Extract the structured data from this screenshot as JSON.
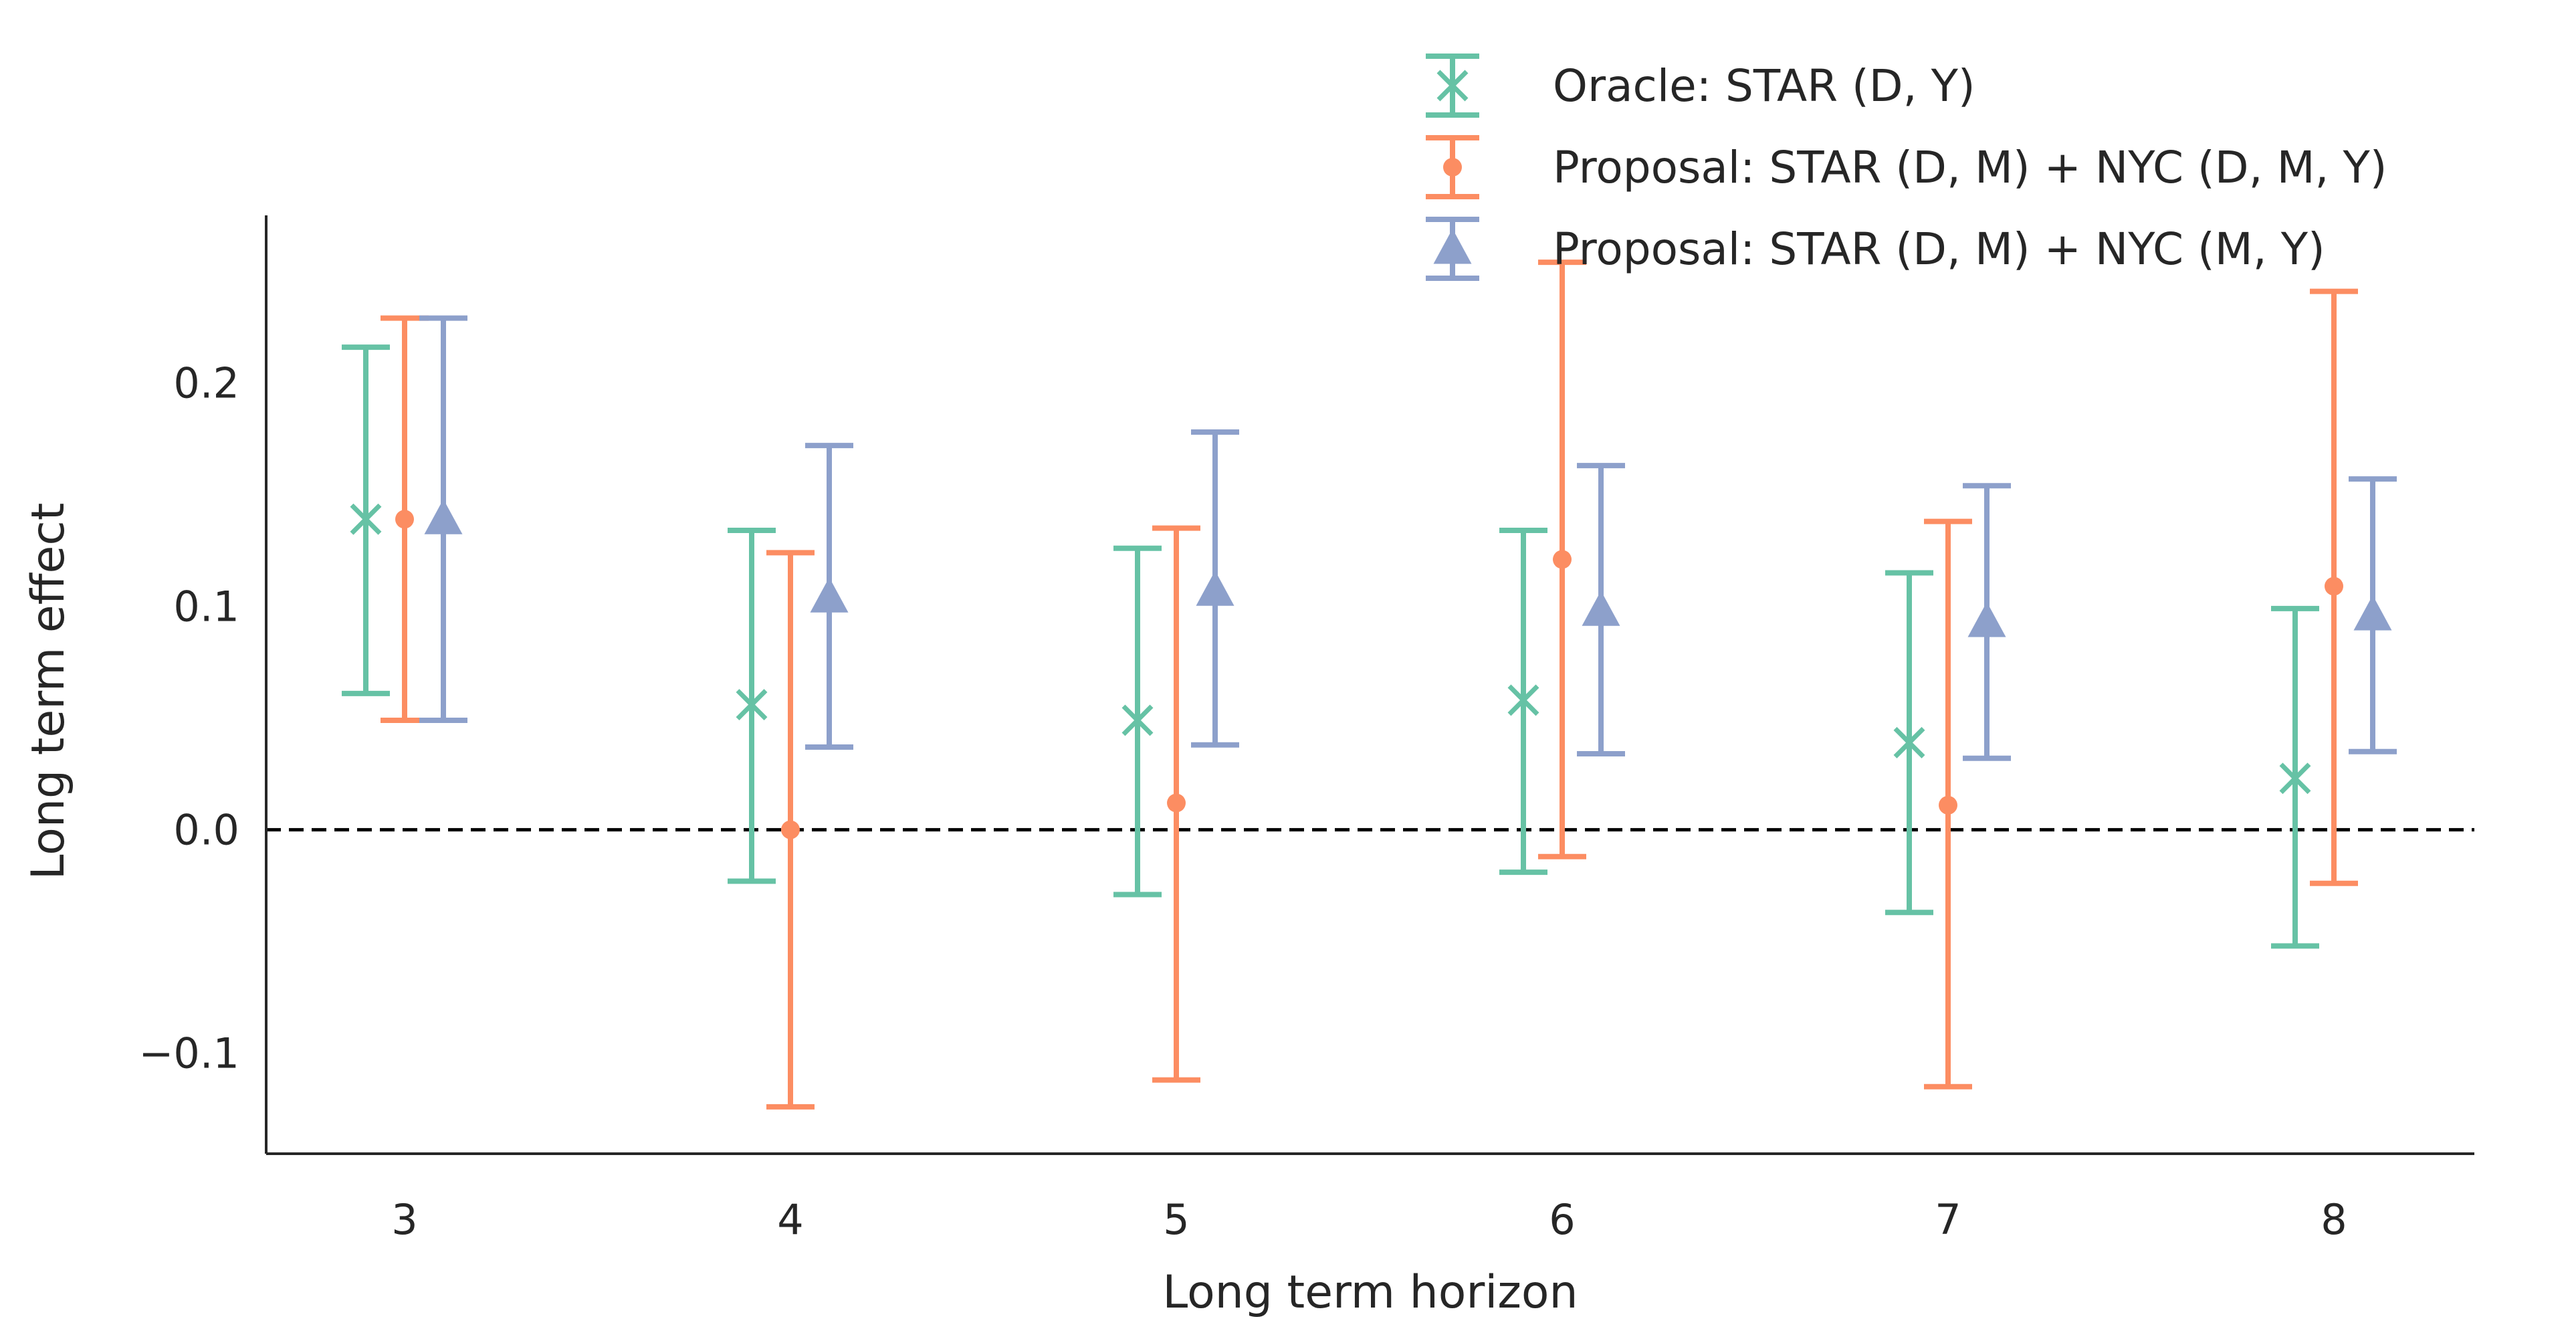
{
  "chart_data": {
    "type": "errorbar",
    "xlabel": "Long term horizon",
    "ylabel": "Long term effect",
    "categories": [
      "3",
      "4",
      "5",
      "6",
      "7",
      "8"
    ],
    "ylim": [
      -0.145,
      0.275
    ],
    "yticks": [
      -0.1,
      0.0,
      0.1,
      0.2
    ],
    "ytick_labels": [
      "−0.1",
      "0.0",
      "0.1",
      "0.2"
    ],
    "reference_line": {
      "y": 0.0,
      "style": "dashed",
      "color": "#000000"
    },
    "legend_position": "top-right",
    "grid": false,
    "series": [
      {
        "name": "Oracle: STAR (D, Y)",
        "color": "#66c2a5",
        "marker": "x",
        "values": [
          0.139,
          0.056,
          0.049,
          0.058,
          0.039,
          0.023
        ],
        "lower": [
          0.061,
          -0.023,
          -0.029,
          -0.019,
          -0.037,
          -0.052
        ],
        "upper": [
          0.216,
          0.134,
          0.126,
          0.134,
          0.115,
          0.099
        ]
      },
      {
        "name": "Proposal: STAR (D, M) + NYC (D, M, Y)",
        "color": "#fc8d62",
        "marker": "o",
        "values": [
          0.139,
          0.0,
          0.012,
          0.121,
          0.011,
          0.109
        ],
        "lower": [
          0.049,
          -0.124,
          -0.112,
          -0.012,
          -0.115,
          -0.024
        ],
        "upper": [
          0.229,
          0.124,
          0.135,
          0.254,
          0.138,
          0.241
        ]
      },
      {
        "name": "Proposal: STAR (D, M) + NYC (M, Y)",
        "color": "#8da0cb",
        "marker": "^",
        "values": [
          0.139,
          0.104,
          0.107,
          0.098,
          0.093,
          0.096
        ],
        "lower": [
          0.049,
          0.037,
          0.038,
          0.034,
          0.032,
          0.035
        ],
        "upper": [
          0.229,
          0.172,
          0.178,
          0.163,
          0.154,
          0.157
        ]
      }
    ]
  }
}
